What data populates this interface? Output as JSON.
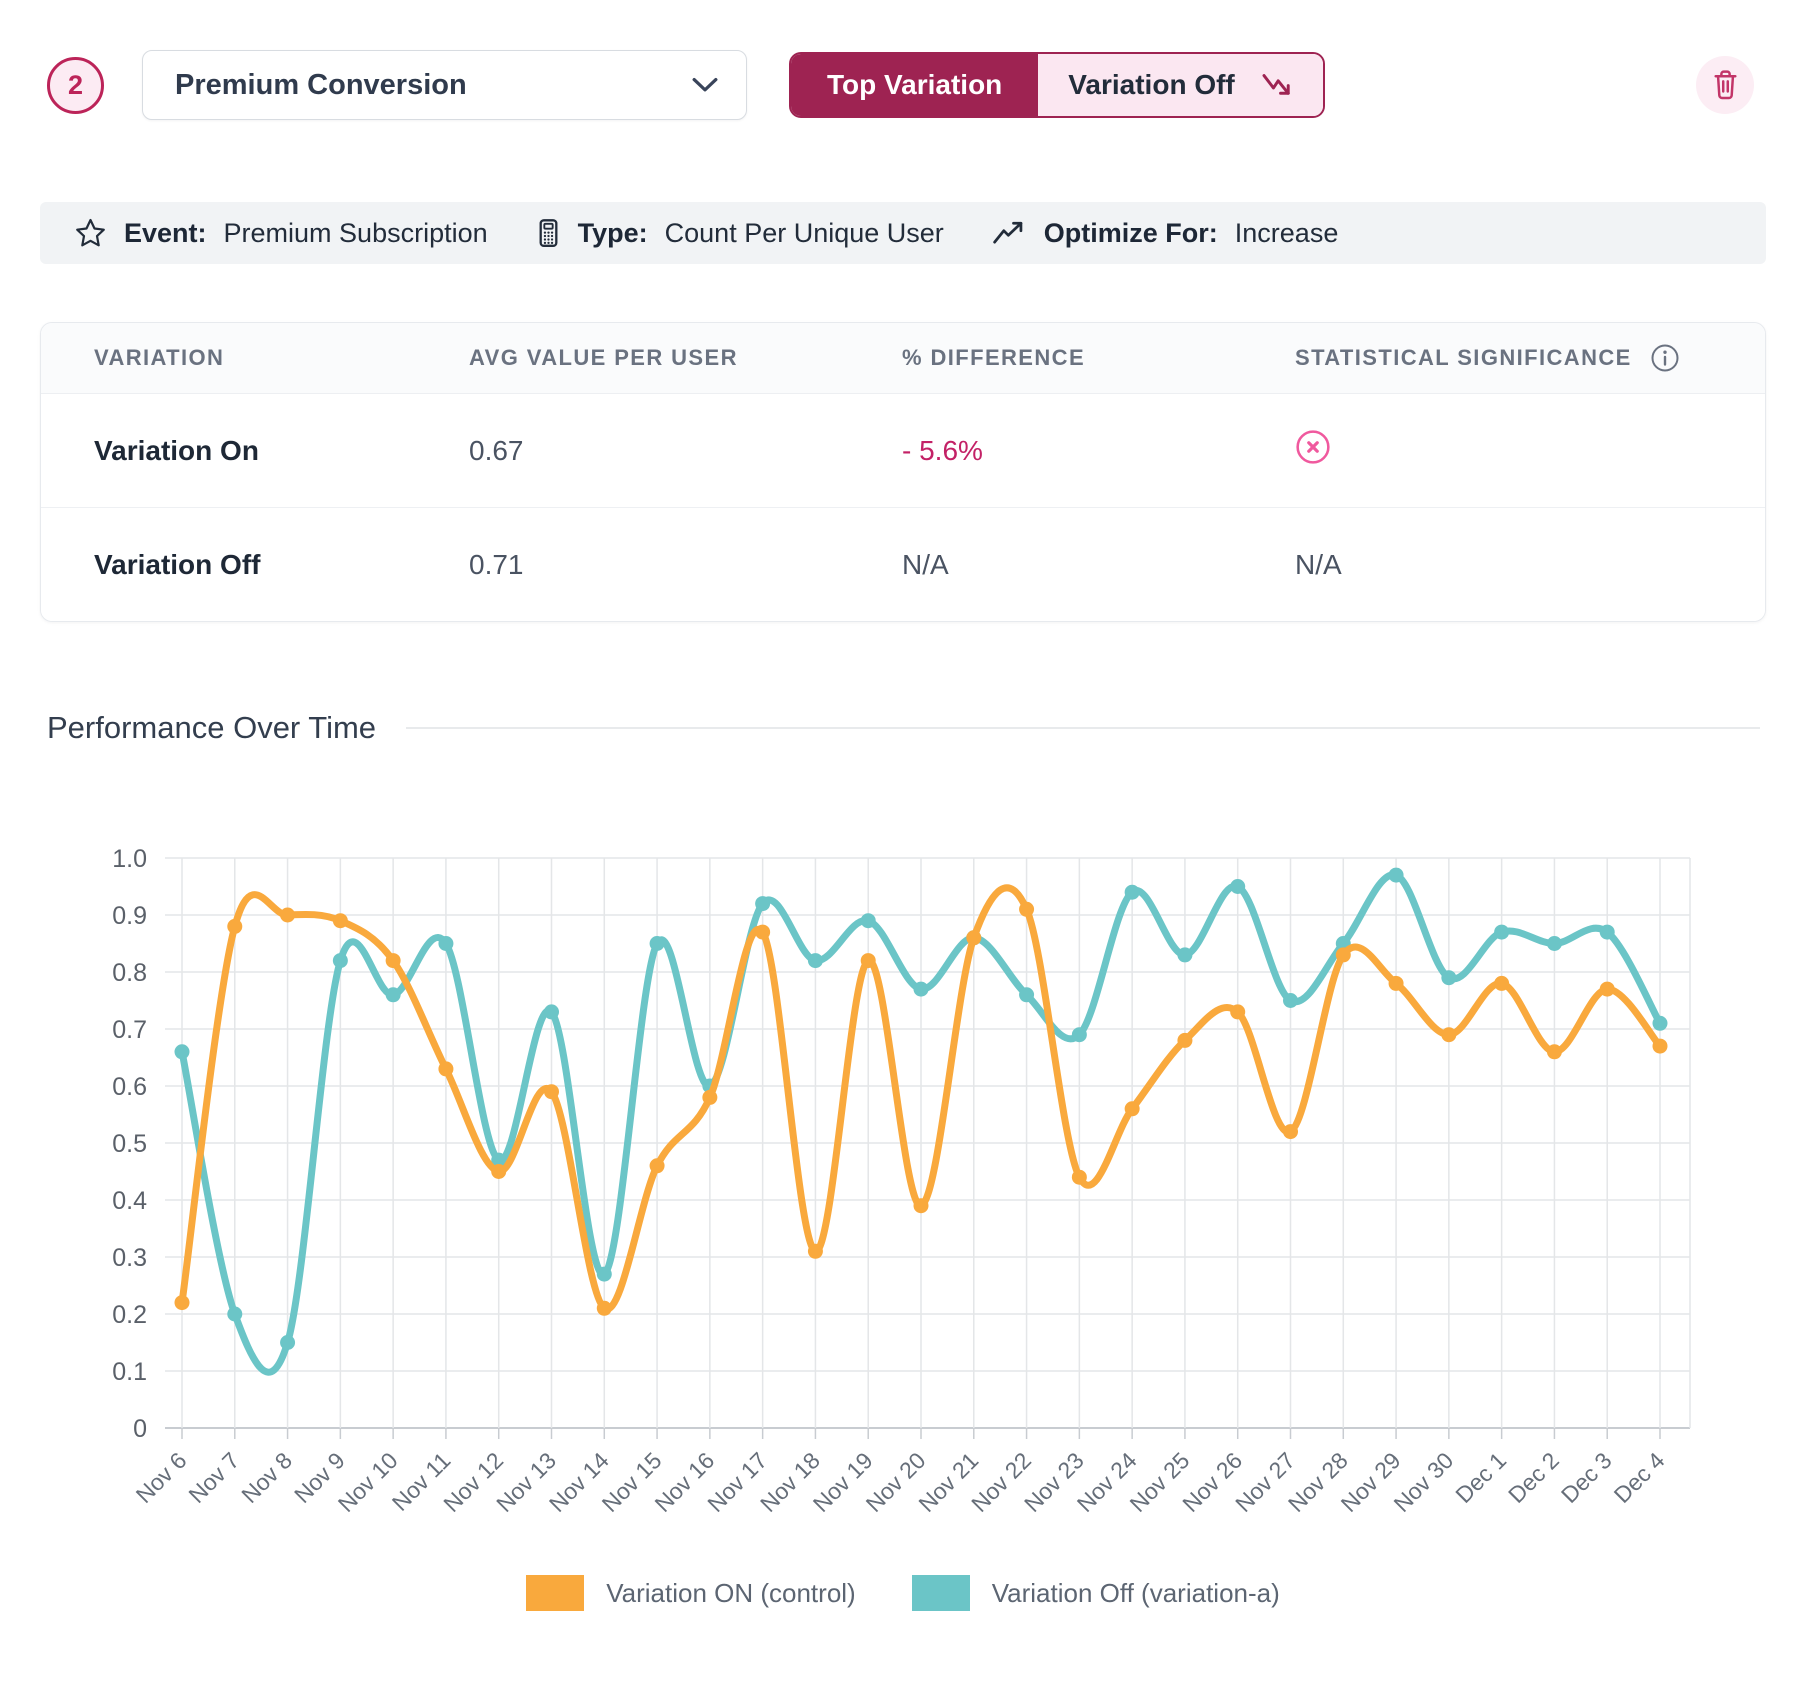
{
  "header": {
    "step_number": "2",
    "metric_selector": {
      "value": "Premium Conversion"
    },
    "toggle": {
      "left_label": "Top Variation",
      "right_label": "Variation Off"
    }
  },
  "info_bar": {
    "event_label": "Event:",
    "event_value": "Premium Subscription",
    "type_label": "Type:",
    "type_value": "Count Per Unique User",
    "optimize_label": "Optimize For:",
    "optimize_value": "Increase"
  },
  "results_table": {
    "columns": [
      "VARIATION",
      "AVG VALUE PER USER",
      "% DIFFERENCE",
      "STATISTICAL SIGNIFICANCE"
    ],
    "rows": [
      {
        "variation": "Variation On",
        "avg_value": "0.67",
        "difference": "- 5.6%",
        "significance": "not-significant"
      },
      {
        "variation": "Variation Off",
        "avg_value": "0.71",
        "difference": "N/A",
        "significance": "N/A"
      }
    ]
  },
  "section": {
    "title": "Performance Over Time"
  },
  "colors": {
    "accent_maroon": "#9E2352",
    "accent_pink": "#C32166",
    "pink_soft": "#FBE7F1",
    "icon_pink": "#F0599E",
    "series_on_orange": "#F9A93D",
    "series_off_teal": "#6BC5C7"
  },
  "chart_data": {
    "type": "line",
    "title": "Performance Over Time",
    "categories": [
      "Nov 6",
      "Nov 7",
      "Nov 8",
      "Nov 9",
      "Nov 10",
      "Nov 11",
      "Nov 12",
      "Nov 13",
      "Nov 14",
      "Nov 15",
      "Nov 16",
      "Nov 17",
      "Nov 18",
      "Nov 19",
      "Nov 20",
      "Nov 21",
      "Nov 22",
      "Nov 23",
      "Nov 24",
      "Nov 25",
      "Nov 26",
      "Nov 27",
      "Nov 28",
      "Nov 29",
      "Nov 30",
      "Dec 1",
      "Dec 2",
      "Dec 3",
      "Dec 4"
    ],
    "series": [
      {
        "name": "Variation ON (control)",
        "color": "#F9A93D",
        "values": [
          0.22,
          0.88,
          0.9,
          0.89,
          0.82,
          0.63,
          0.45,
          0.59,
          0.21,
          0.46,
          0.58,
          0.87,
          0.31,
          0.82,
          0.39,
          0.86,
          0.91,
          0.44,
          0.56,
          0.68,
          0.73,
          0.52,
          0.83,
          0.78,
          0.69,
          0.78,
          0.66,
          0.77,
          0.67
        ]
      },
      {
        "name": "Variation Off (variation-a)",
        "color": "#6BC5C7",
        "values": [
          0.66,
          0.2,
          0.15,
          0.82,
          0.76,
          0.85,
          0.47,
          0.73,
          0.27,
          0.85,
          0.6,
          0.92,
          0.82,
          0.89,
          0.77,
          0.86,
          0.76,
          0.69,
          0.94,
          0.83,
          0.95,
          0.75,
          0.85,
          0.97,
          0.79,
          0.87,
          0.85,
          0.87,
          0.71
        ]
      }
    ],
    "ylim": [
      0,
      1.0
    ],
    "y_ticks": [
      "1.0",
      "0.9",
      "0.8",
      "0.7",
      "0.6",
      "0.5",
      "0.4",
      "0.3",
      "0.2",
      "0.1",
      "0"
    ],
    "grid": true,
    "legend_position": "bottom",
    "xlabel": "",
    "ylabel": ""
  }
}
